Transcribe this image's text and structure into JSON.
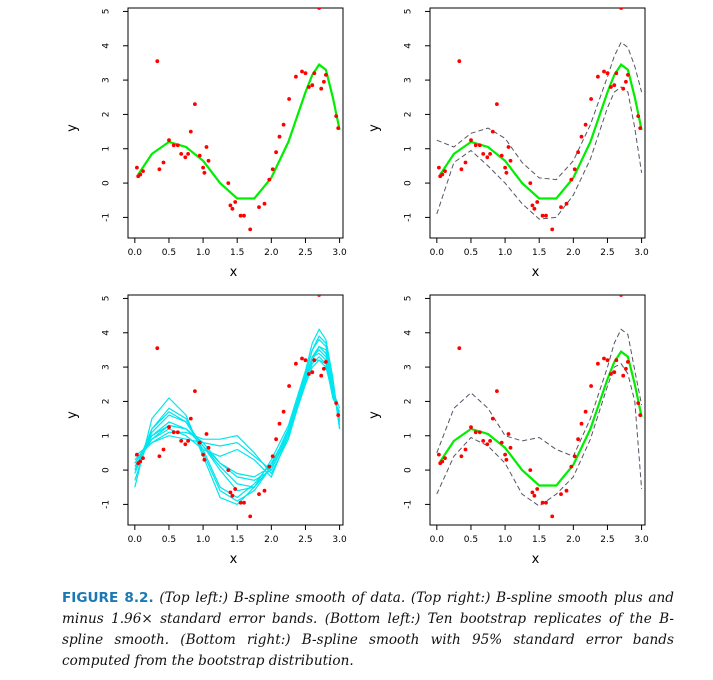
{
  "figure": {
    "label": "FIGURE 8.2.",
    "caption_text": "(Top left:) B-spline smooth of data. (Top right:) B-spline smooth plus and minus 1.96× standard error bands. (Bottom left:) Ten bootstrap replicates of the B-spline smooth. (Bottom right:) B-spline smooth with 95% standard error bands computed from the bootstrap distribution.",
    "colors": {
      "points": "#ff0000",
      "smooth": "#00ee00",
      "bootstrap": "#00e5ee",
      "bands": "#555566"
    }
  },
  "chart_data": [
    {
      "type": "scatter",
      "panel": "top-left",
      "title": "",
      "xlabel": "x",
      "ylabel": "y",
      "xlim": [
        -0.1,
        3.05
      ],
      "ylim": [
        -1.6,
        5.1
      ],
      "xticks": [
        "0.0",
        "0.5",
        "1.0",
        "1.5",
        "2.0",
        "2.5",
        "3.0"
      ],
      "yticks": [
        "-1",
        "0",
        "1",
        "2",
        "3",
        "4",
        "5"
      ],
      "points": {
        "x": [
          0.03,
          0.05,
          0.08,
          0.12,
          0.33,
          0.36,
          0.42,
          0.5,
          0.57,
          0.63,
          0.68,
          0.74,
          0.78,
          0.82,
          0.88,
          0.95,
          1.0,
          1.02,
          1.05,
          1.08,
          1.37,
          1.4,
          1.43,
          1.47,
          1.55,
          1.6,
          1.69,
          1.82,
          1.9,
          1.97,
          2.02,
          2.07,
          2.12,
          2.18,
          2.26,
          2.36,
          2.45,
          2.5,
          2.55,
          2.6,
          2.63,
          2.7,
          2.73,
          2.77,
          2.8,
          2.95,
          2.98
        ],
        "y": [
          0.45,
          0.2,
          0.25,
          0.35,
          3.55,
          0.4,
          0.6,
          1.25,
          1.1,
          1.1,
          0.85,
          0.75,
          0.85,
          1.5,
          2.3,
          0.8,
          0.45,
          0.3,
          1.05,
          0.65,
          0.0,
          -0.65,
          -0.75,
          -0.55,
          -0.95,
          -0.95,
          -1.35,
          -0.7,
          -0.6,
          0.1,
          0.4,
          0.9,
          1.35,
          1.7,
          2.45,
          3.1,
          3.25,
          3.2,
          2.8,
          2.85,
          3.2,
          5.1,
          2.75,
          2.95,
          3.15,
          1.95,
          1.6
        ]
      },
      "series": [
        {
          "name": "B-spline smooth",
          "x": [
            0.05,
            0.25,
            0.5,
            0.75,
            1.0,
            1.25,
            1.5,
            1.75,
            2.0,
            2.25,
            2.5,
            2.6,
            2.7,
            2.8,
            2.9,
            3.0
          ],
          "y": [
            0.25,
            0.85,
            1.2,
            1.05,
            0.65,
            0.0,
            -0.45,
            -0.45,
            0.15,
            1.2,
            2.65,
            3.15,
            3.45,
            3.3,
            2.5,
            1.55
          ]
        }
      ]
    },
    {
      "type": "scatter",
      "panel": "top-right",
      "title": "",
      "xlabel": "x",
      "ylabel": "y",
      "xlim": [
        -0.1,
        3.05
      ],
      "ylim": [
        -1.6,
        5.1
      ],
      "xticks": [
        "0.0",
        "0.5",
        "1.0",
        "1.5",
        "2.0",
        "2.5",
        "3.0"
      ],
      "yticks": [
        "-1",
        "0",
        "1",
        "2",
        "3",
        "4",
        "5"
      ],
      "series": [
        {
          "name": "B-spline smooth",
          "x": [
            0.05,
            0.25,
            0.5,
            0.75,
            1.0,
            1.25,
            1.5,
            1.75,
            2.0,
            2.25,
            2.5,
            2.6,
            2.7,
            2.8,
            2.9,
            3.0
          ],
          "y": [
            0.25,
            0.85,
            1.2,
            1.05,
            0.65,
            0.0,
            -0.45,
            -0.45,
            0.15,
            1.2,
            2.65,
            3.15,
            3.45,
            3.3,
            2.5,
            1.55
          ]
        },
        {
          "name": "upper 1.96x SE band",
          "x": [
            0.0,
            0.25,
            0.5,
            0.75,
            1.0,
            1.25,
            1.5,
            1.75,
            2.0,
            2.25,
            2.5,
            2.6,
            2.7,
            2.8,
            2.9,
            3.0
          ],
          "y": [
            1.25,
            1.05,
            1.45,
            1.6,
            1.3,
            0.6,
            0.15,
            0.1,
            0.65,
            1.7,
            3.1,
            3.7,
            4.1,
            3.95,
            3.4,
            2.65
          ]
        },
        {
          "name": "lower 1.96x SE band",
          "x": [
            0.0,
            0.25,
            0.5,
            0.75,
            1.0,
            1.25,
            1.5,
            1.75,
            2.0,
            2.25,
            2.5,
            2.6,
            2.7,
            2.8,
            2.9,
            3.0
          ],
          "y": [
            -0.9,
            0.6,
            0.95,
            0.5,
            0.0,
            -0.6,
            -1.05,
            -1.0,
            -0.35,
            0.7,
            2.2,
            2.65,
            2.8,
            2.65,
            1.6,
            0.3
          ]
        }
      ]
    },
    {
      "type": "line",
      "panel": "bottom-left",
      "title": "",
      "xlabel": "x",
      "ylabel": "y",
      "xlim": [
        -0.1,
        3.05
      ],
      "ylim": [
        -1.6,
        5.1
      ],
      "xticks": [
        "0.0",
        "0.5",
        "1.0",
        "1.5",
        "2.0",
        "2.5",
        "3.0"
      ],
      "yticks": [
        "-1",
        "0",
        "1",
        "2",
        "3",
        "4",
        "5"
      ],
      "x": [
        0.0,
        0.25,
        0.5,
        0.75,
        1.0,
        1.25,
        1.5,
        1.75,
        2.0,
        2.25,
        2.5,
        2.6,
        2.7,
        2.8,
        2.9,
        3.0
      ],
      "series": [
        {
          "name": "bootstrap 1",
          "y": [
            -0.5,
            1.5,
            2.1,
            1.6,
            0.4,
            -0.8,
            -1.0,
            -0.5,
            0.3,
            1.3,
            2.9,
            3.7,
            4.1,
            3.8,
            2.7,
            1.2
          ]
        },
        {
          "name": "bootstrap 2",
          "y": [
            0.0,
            1.0,
            1.4,
            1.2,
            0.8,
            0.2,
            -0.1,
            -0.2,
            0.1,
            1.2,
            2.7,
            3.3,
            3.5,
            3.3,
            2.4,
            1.4
          ]
        },
        {
          "name": "bootstrap 3",
          "y": [
            0.3,
            0.8,
            1.1,
            1.1,
            0.9,
            0.9,
            1.0,
            0.5,
            -0.1,
            0.9,
            2.6,
            3.1,
            3.3,
            3.1,
            2.1,
            1.7
          ]
        },
        {
          "name": "bootstrap 4",
          "y": [
            -0.3,
            1.2,
            1.7,
            1.4,
            0.6,
            -0.5,
            -0.8,
            -0.4,
            0.2,
            1.1,
            2.8,
            3.5,
            3.8,
            3.6,
            2.5,
            1.3
          ]
        },
        {
          "name": "bootstrap 5",
          "y": [
            0.1,
            0.9,
            1.2,
            1.0,
            0.6,
            0.4,
            0.6,
            0.3,
            -0.2,
            1.0,
            2.6,
            3.2,
            3.2,
            3.0,
            2.2,
            1.6
          ]
        },
        {
          "name": "bootstrap 6",
          "y": [
            0.2,
            0.9,
            1.3,
            1.2,
            0.7,
            0.1,
            -0.4,
            -0.5,
            0.1,
            1.2,
            2.7,
            3.3,
            3.6,
            3.4,
            2.3,
            1.5
          ]
        },
        {
          "name": "bootstrap 7",
          "y": [
            -0.1,
            1.1,
            1.6,
            1.4,
            0.7,
            0.0,
            -0.6,
            -0.5,
            0.1,
            1.2,
            2.6,
            3.2,
            3.6,
            3.5,
            2.5,
            1.4
          ]
        },
        {
          "name": "bootstrap 8",
          "y": [
            0.4,
            0.8,
            1.0,
            0.9,
            0.8,
            0.7,
            0.8,
            0.4,
            0.0,
            1.0,
            2.5,
            3.0,
            3.2,
            3.1,
            2.3,
            1.8
          ]
        },
        {
          "name": "bootstrap 9",
          "y": [
            0.0,
            1.2,
            1.8,
            1.5,
            0.5,
            -0.6,
            -0.9,
            -0.6,
            0.1,
            1.2,
            2.8,
            3.5,
            3.9,
            3.7,
            2.6,
            1.2
          ]
        },
        {
          "name": "bootstrap 10",
          "y": [
            0.2,
            1.0,
            1.3,
            1.2,
            0.7,
            0.2,
            -0.2,
            -0.3,
            0.0,
            1.1,
            2.7,
            3.3,
            3.4,
            3.2,
            2.2,
            1.6
          ]
        }
      ]
    },
    {
      "type": "scatter",
      "panel": "bottom-right",
      "title": "",
      "xlabel": "x",
      "ylabel": "y",
      "xlim": [
        -0.1,
        3.05
      ],
      "ylim": [
        -1.6,
        5.1
      ],
      "xticks": [
        "0.0",
        "0.5",
        "1.0",
        "1.5",
        "2.0",
        "2.5",
        "3.0"
      ],
      "yticks": [
        "-1",
        "0",
        "1",
        "2",
        "3",
        "4",
        "5"
      ],
      "series": [
        {
          "name": "B-spline smooth",
          "x": [
            0.05,
            0.25,
            0.5,
            0.75,
            1.0,
            1.25,
            1.5,
            1.75,
            2.0,
            2.25,
            2.5,
            2.6,
            2.7,
            2.8,
            2.9,
            3.0
          ],
          "y": [
            0.25,
            0.85,
            1.2,
            1.05,
            0.65,
            0.0,
            -0.45,
            -0.45,
            0.15,
            1.2,
            2.65,
            3.15,
            3.45,
            3.3,
            2.5,
            1.55
          ]
        },
        {
          "name": "upper 95% bootstrap band",
          "x": [
            0.0,
            0.25,
            0.5,
            0.75,
            1.0,
            1.25,
            1.5,
            1.75,
            2.0,
            2.25,
            2.5,
            2.6,
            2.7,
            2.8,
            2.9,
            3.0
          ],
          "y": [
            0.5,
            1.8,
            2.25,
            1.8,
            1.0,
            0.85,
            0.95,
            0.6,
            0.4,
            1.5,
            3.0,
            3.7,
            4.1,
            3.95,
            2.9,
            1.9
          ]
        },
        {
          "name": "lower 95% bootstrap band",
          "x": [
            0.0,
            0.25,
            0.5,
            0.75,
            1.0,
            1.25,
            1.5,
            1.75,
            2.0,
            2.25,
            2.5,
            2.6,
            2.7,
            2.8,
            2.9,
            3.0
          ],
          "y": [
            -0.7,
            0.4,
            0.95,
            0.7,
            0.2,
            -0.7,
            -1.05,
            -0.7,
            -0.2,
            0.9,
            2.45,
            3.0,
            3.1,
            2.8,
            2.0,
            -0.55
          ]
        }
      ]
    }
  ]
}
